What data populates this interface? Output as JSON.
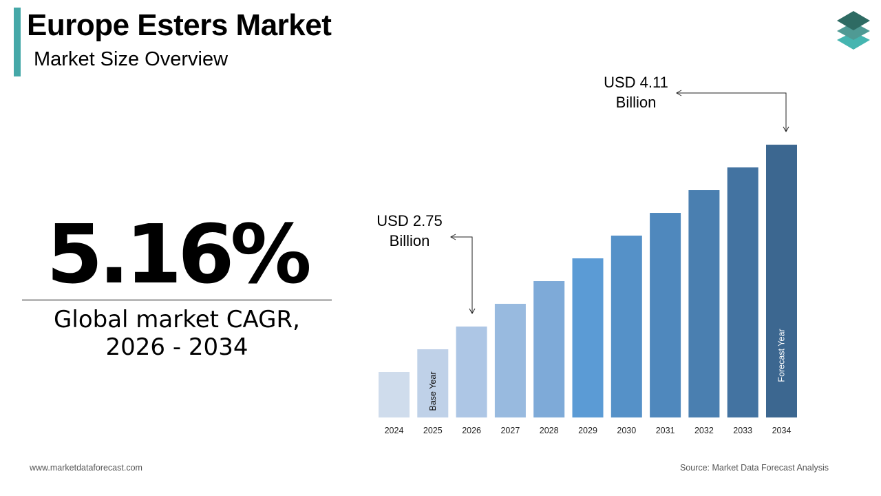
{
  "header": {
    "title": "Europe Esters Market",
    "subtitle": "Market Size Overview"
  },
  "kpi": {
    "value": "5.16%",
    "label_line1": "Global market CAGR,",
    "label_line2": "2026 - 2034"
  },
  "footer": {
    "website": "www.marketdataforecast.com",
    "source": "Source: Market Data Forecast Analysis"
  },
  "logo": {
    "icon": "stacked-layers-icon",
    "colors": [
      "#2e6b63",
      "#4f9a94",
      "#45b5b0"
    ]
  },
  "chart_data": {
    "type": "bar",
    "categories": [
      "2024",
      "2025",
      "2026",
      "2027",
      "2028",
      "2029",
      "2030",
      "2031",
      "2032",
      "2033",
      "2034"
    ],
    "values": [
      2.41,
      2.58,
      2.75,
      2.92,
      3.09,
      3.26,
      3.43,
      3.6,
      3.77,
      3.94,
      4.11
    ],
    "unit": "USD Billion",
    "colors": [
      "#cfdcec",
      "#bfd1e8",
      "#adc6e5",
      "#98badf",
      "#7eaad8",
      "#5b9bd5",
      "#5591c8",
      "#4f88bd",
      "#4a7fb0",
      "#4373a1",
      "#3c6790"
    ],
    "bar_labels": {
      "2025": "Base Year",
      "2034": "Forecast Year"
    },
    "annotations": [
      {
        "category": "2026",
        "line1": "USD 2.75",
        "line2": "Billion"
      },
      {
        "category": "2034",
        "line1": "USD 4.11",
        "line2": "Billion"
      }
    ],
    "grid": false,
    "legend": "none"
  }
}
